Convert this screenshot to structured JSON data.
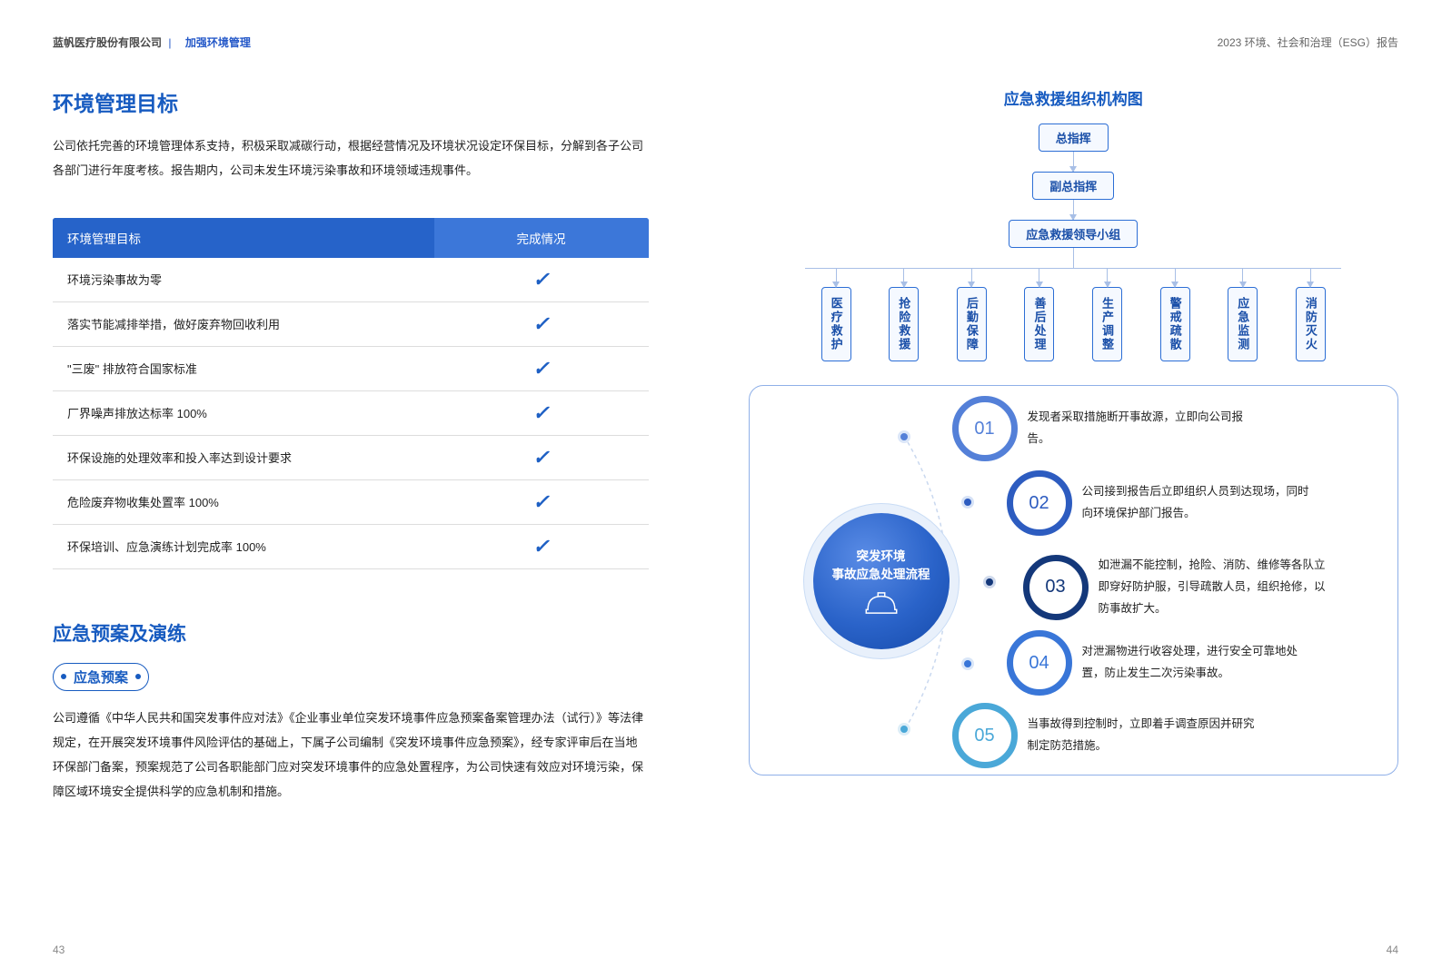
{
  "header": {
    "company": "蓝帆医疗股份有限公司",
    "section": "加强环境管理",
    "report": "2023 环境、社会和治理（ESG）报告"
  },
  "left": {
    "title1": "环境管理目标",
    "intro": "公司依托完善的环境管理体系支持，积极采取减碳行动，根据经营情况及环境状况设定环保目标，分解到各子公司各部门进行年度考核。报告期内，公司未发生环境污染事故和环境领域违规事件。",
    "table": {
      "head": [
        "环境管理目标",
        "完成情况"
      ],
      "rows": [
        "环境污染事故为零",
        "落实节能减排举措，做好废弃物回收利用",
        "\"三废\" 排放符合国家标准",
        "厂界噪声排放达标率 100%",
        "环保设施的处理效率和投入率达到设计要求",
        "危险废弃物收集处置率 100%",
        "环保培训、应急演练计划完成率 100%"
      ],
      "check_color": "#1d5fc4",
      "header_colors": [
        "#2663c9",
        "#3c77d9"
      ]
    },
    "title2": "应急预案及演练",
    "pill": "应急预案",
    "para2": "公司遵循《中华人民共和国突发事件应对法》《企业事业单位突发环境事件应急预案备案管理办法（试行）》等法律规定，在开展突发环境事件风险评估的基础上，下属子公司编制《突发环境事件应急预案》，经专家评审后在当地环保部门备案，预案规范了公司各职能部门应对突发环境事件的应急处置程序，为公司快速有效应对环境污染，保障区域环境安全提供科学的应急机制和措施。",
    "page_num": "43"
  },
  "right": {
    "org_title": "应急救援组织机构图",
    "org_levels": [
      "总指挥",
      "副总指挥",
      "应急救援领导小组"
    ],
    "org_teams": [
      "医疗救护",
      "抢险救援",
      "后勤保障",
      "善后处理",
      "生产调整",
      "警戒疏散",
      "应急监测",
      "消防灭火"
    ],
    "process": {
      "center": [
        "突发环境",
        "事故应急处理流程"
      ],
      "steps": [
        {
          "num": "01",
          "text": "发现者采取措施断开事故源，立即向公司报告。",
          "color": "#5480d8"
        },
        {
          "num": "02",
          "text": "公司接到报告后立即组织人员到达现场，同时向环境保护部门报告。",
          "color": "#2d5cc0"
        },
        {
          "num": "03",
          "text": "如泄漏不能控制，抢险、消防、维修等各队立即穿好防护服，引导疏散人员，组织抢修，以防事故扩大。",
          "color": "#14387a"
        },
        {
          "num": "04",
          "text": "对泄漏物进行收容处理，进行安全可靠地处置，防止发生二次污染事故。",
          "color": "#3976d8"
        },
        {
          "num": "05",
          "text": "当事故得到控制时，立即着手调查原因并研究制定防范措施。",
          "color": "#4aa8d8"
        }
      ]
    },
    "page_num": "44"
  },
  "colors": {
    "primary": "#175bc0",
    "box_border": "#2c6ed5",
    "box_bg": "#f5f9ff",
    "connector": "#a8bfe6",
    "panel_border": "#8fb0e8"
  }
}
